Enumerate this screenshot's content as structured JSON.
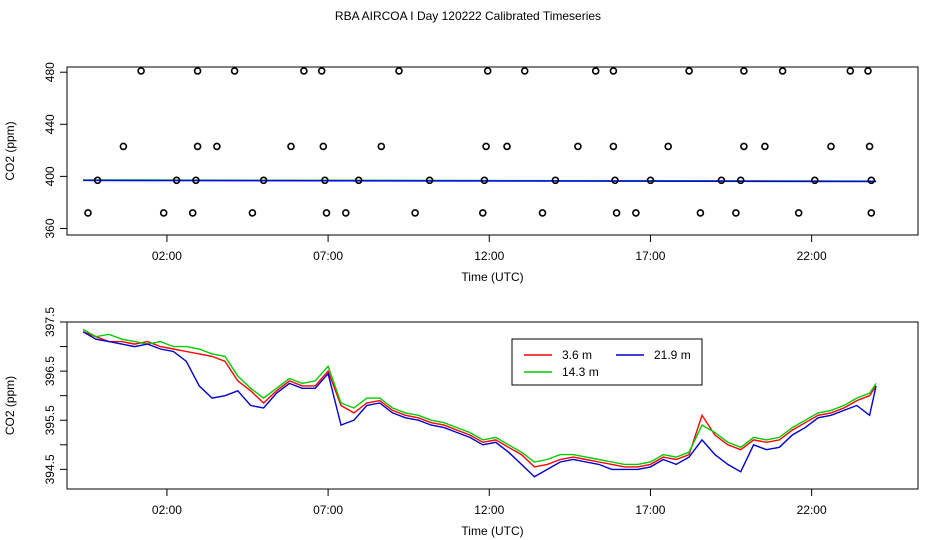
{
  "title": "RBA AIRCOA I  Day 120222  Calibrated Timeseries",
  "chart_data": [
    {
      "type": "scatter",
      "xlabel": "Time (UTC)",
      "ylabel": "CO2 (ppm)",
      "xlim": [
        -1.1,
        25.3
      ],
      "ylim": [
        355.0,
        484.0
      ],
      "xticks": [
        2,
        7,
        12,
        17,
        22
      ],
      "xtick_labels": [
        "02:00",
        "07:00",
        "12:00",
        "17:00",
        "22:00"
      ],
      "yticks": [
        360,
        400,
        440,
        480
      ],
      "ytick_labels": [
        "360",
        "400",
        "440",
        "480"
      ],
      "grid": false,
      "points": [
        [
          1.2,
          481
        ],
        [
          2.95,
          481
        ],
        [
          4.1,
          481
        ],
        [
          6.25,
          481
        ],
        [
          6.8,
          481
        ],
        [
          9.2,
          481
        ],
        [
          11.95,
          481
        ],
        [
          13.1,
          481
        ],
        [
          15.3,
          481
        ],
        [
          15.85,
          481
        ],
        [
          18.2,
          481
        ],
        [
          19.9,
          481
        ],
        [
          21.1,
          481
        ],
        [
          23.2,
          481
        ],
        [
          23.75,
          481
        ],
        [
          0.65,
          423
        ],
        [
          2.95,
          423
        ],
        [
          3.55,
          423
        ],
        [
          5.85,
          423
        ],
        [
          6.85,
          423
        ],
        [
          8.65,
          423
        ],
        [
          11.9,
          423
        ],
        [
          12.55,
          423
        ],
        [
          14.75,
          423
        ],
        [
          15.85,
          423
        ],
        [
          17.55,
          423
        ],
        [
          19.9,
          423
        ],
        [
          20.55,
          423
        ],
        [
          22.6,
          423
        ],
        [
          23.8,
          423
        ],
        [
          -0.15,
          397
        ],
        [
          2.3,
          397
        ],
        [
          2.9,
          397
        ],
        [
          5.0,
          397
        ],
        [
          6.9,
          397
        ],
        [
          7.95,
          397
        ],
        [
          10.15,
          397
        ],
        [
          11.85,
          397
        ],
        [
          14.05,
          397
        ],
        [
          15.9,
          397
        ],
        [
          17.0,
          397
        ],
        [
          19.2,
          397
        ],
        [
          19.8,
          397
        ],
        [
          22.1,
          397
        ],
        [
          23.85,
          397
        ],
        [
          -0.45,
          372
        ],
        [
          1.9,
          372
        ],
        [
          2.8,
          372
        ],
        [
          4.65,
          372
        ],
        [
          6.95,
          372
        ],
        [
          7.55,
          372
        ],
        [
          9.7,
          372
        ],
        [
          11.8,
          372
        ],
        [
          13.65,
          372
        ],
        [
          15.95,
          372
        ],
        [
          16.55,
          372
        ],
        [
          18.55,
          372
        ],
        [
          19.65,
          372
        ],
        [
          21.6,
          372
        ],
        [
          23.85,
          372
        ]
      ],
      "lines": [
        {
          "color": "#ff0000",
          "x": [
            -0.6,
            24.0
          ],
          "y": [
            397.1,
            396.3
          ]
        },
        {
          "color": "#00cc00",
          "x": [
            -0.6,
            24.0
          ],
          "y": [
            397.2,
            396.4
          ]
        },
        {
          "color": "#0000ff",
          "x": [
            -0.6,
            24.0
          ],
          "y": [
            396.9,
            396.1
          ]
        }
      ]
    },
    {
      "type": "line",
      "xlabel": "Time (UTC)",
      "ylabel": "CO2 (ppm)",
      "xlim": [
        -1.1,
        25.3
      ],
      "ylim": [
        394.1,
        397.5
      ],
      "xticks": [
        2,
        7,
        12,
        17,
        22
      ],
      "xtick_labels": [
        "02:00",
        "07:00",
        "12:00",
        "17:00",
        "22:00"
      ],
      "yticks": [
        394.5,
        395.5,
        396.5,
        397.5
      ],
      "ytick_labels": [
        "394.5",
        "395.5",
        "396.5",
        "397.5"
      ],
      "yticks_unlabeled": [
        395.0,
        396.0,
        397.0
      ],
      "grid": false,
      "legend": {
        "position": "top-center",
        "columns": 2
      },
      "x": [
        -0.6,
        -0.2,
        0.2,
        0.6,
        1.0,
        1.4,
        1.8,
        2.2,
        2.6,
        3.0,
        3.4,
        3.8,
        4.2,
        4.6,
        5.0,
        5.4,
        5.8,
        6.2,
        6.6,
        7.0,
        7.4,
        7.8,
        8.2,
        8.6,
        9.0,
        9.4,
        9.8,
        10.2,
        10.6,
        11.0,
        11.4,
        11.8,
        12.2,
        12.6,
        13.0,
        13.4,
        13.8,
        14.2,
        14.6,
        15.0,
        15.4,
        15.8,
        16.2,
        16.6,
        17.0,
        17.4,
        17.8,
        18.2,
        18.6,
        19.0,
        19.4,
        19.8,
        20.2,
        20.6,
        21.0,
        21.4,
        21.8,
        22.2,
        22.6,
        23.0,
        23.4,
        23.8,
        24.0
      ],
      "series": [
        {
          "name": "3.6 m",
          "color": "#ff0000",
          "values": [
            397.3,
            397.2,
            397.1,
            397.1,
            397.05,
            397.1,
            397.0,
            396.95,
            396.9,
            396.85,
            396.8,
            396.7,
            396.3,
            396.1,
            395.85,
            396.1,
            396.3,
            396.2,
            396.2,
            396.5,
            395.8,
            395.65,
            395.85,
            395.9,
            395.7,
            395.6,
            395.55,
            395.45,
            395.4,
            395.3,
            395.2,
            395.05,
            395.1,
            394.95,
            394.8,
            394.55,
            394.6,
            394.7,
            394.75,
            394.7,
            394.65,
            394.6,
            394.55,
            394.55,
            394.6,
            394.75,
            394.7,
            394.8,
            395.6,
            395.2,
            395.0,
            394.9,
            395.1,
            395.05,
            395.1,
            395.3,
            395.45,
            395.6,
            395.65,
            395.75,
            395.9,
            396.0,
            396.2
          ]
        },
        {
          "name": "14.3 m",
          "color": "#00cc00",
          "values": [
            397.35,
            397.2,
            397.25,
            397.15,
            397.1,
            397.05,
            397.1,
            397.0,
            397.0,
            396.95,
            396.85,
            396.8,
            396.4,
            396.15,
            395.95,
            396.15,
            396.35,
            396.25,
            396.3,
            396.6,
            395.85,
            395.75,
            395.95,
            395.95,
            395.75,
            395.65,
            395.6,
            395.5,
            395.45,
            395.35,
            395.25,
            395.1,
            395.15,
            395.0,
            394.85,
            394.65,
            394.7,
            394.8,
            394.8,
            394.75,
            394.7,
            394.65,
            394.6,
            394.6,
            394.65,
            394.8,
            394.75,
            394.85,
            395.4,
            395.25,
            395.05,
            394.95,
            395.15,
            395.1,
            395.15,
            395.35,
            395.5,
            395.65,
            395.7,
            395.8,
            395.95,
            396.05,
            396.25
          ]
        },
        {
          "name": "21.9 m",
          "color": "#0000cc",
          "values": [
            397.3,
            397.15,
            397.1,
            397.05,
            397.0,
            397.05,
            396.95,
            396.9,
            396.7,
            396.2,
            395.95,
            396.0,
            396.1,
            395.8,
            395.75,
            396.05,
            396.25,
            396.15,
            396.15,
            396.45,
            395.4,
            395.5,
            395.8,
            395.85,
            395.65,
            395.55,
            395.5,
            395.4,
            395.35,
            395.25,
            395.15,
            395.0,
            395.05,
            394.85,
            394.6,
            394.35,
            394.5,
            394.65,
            394.7,
            394.65,
            394.6,
            394.5,
            394.5,
            394.5,
            394.55,
            394.7,
            394.6,
            394.75,
            395.1,
            394.8,
            394.6,
            394.45,
            395.0,
            394.9,
            394.95,
            395.2,
            395.35,
            395.55,
            395.6,
            395.7,
            395.8,
            395.6,
            396.2
          ]
        }
      ]
    }
  ]
}
